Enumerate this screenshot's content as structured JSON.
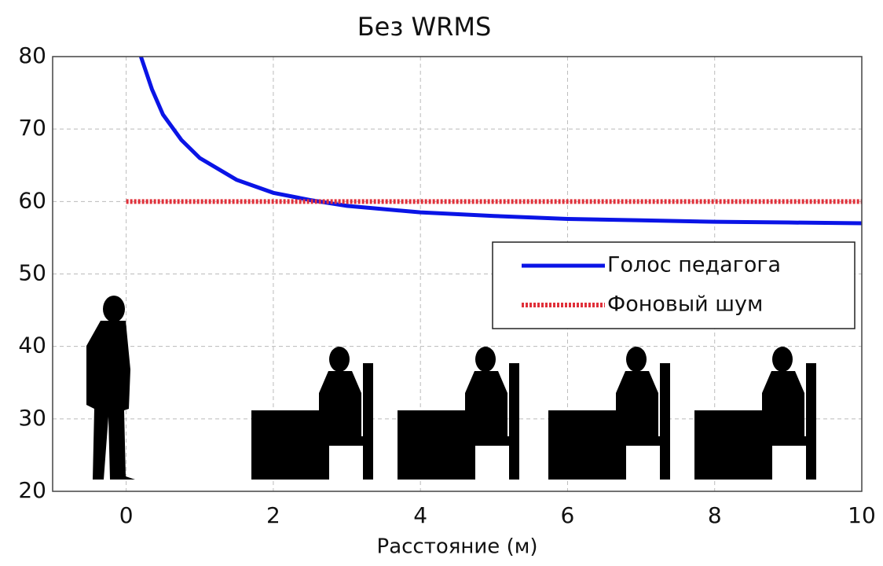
{
  "chart_data": {
    "type": "line",
    "title": "Без WRMS",
    "x_label": "Расстояние (м)",
    "series": [
      {
        "name": "Голос педагога",
        "color": "#0a14e6",
        "style": "solid",
        "x": [
          0.2,
          0.35,
          0.5,
          0.75,
          1,
          1.5,
          2,
          2.5,
          3,
          4,
          5,
          6,
          7,
          8,
          9,
          10
        ],
        "values": [
          80,
          75.5,
          72,
          68.5,
          66,
          63,
          61.2,
          60.2,
          59.4,
          58.5,
          58,
          57.6,
          57.4,
          57.2,
          57.1,
          57
        ]
      },
      {
        "name": "Фоновый шум",
        "color": "#e0303a",
        "style": "dotted",
        "x": [
          0,
          10
        ],
        "values": [
          60,
          60
        ]
      }
    ],
    "xlim": [
      -1,
      10
    ],
    "ylim": [
      20,
      80
    ],
    "xticks": [
      0,
      2,
      4,
      6,
      8,
      10
    ],
    "yticks": [
      20,
      30,
      40,
      50,
      60,
      70,
      80
    ],
    "grid": true,
    "legend": "upper right"
  }
}
